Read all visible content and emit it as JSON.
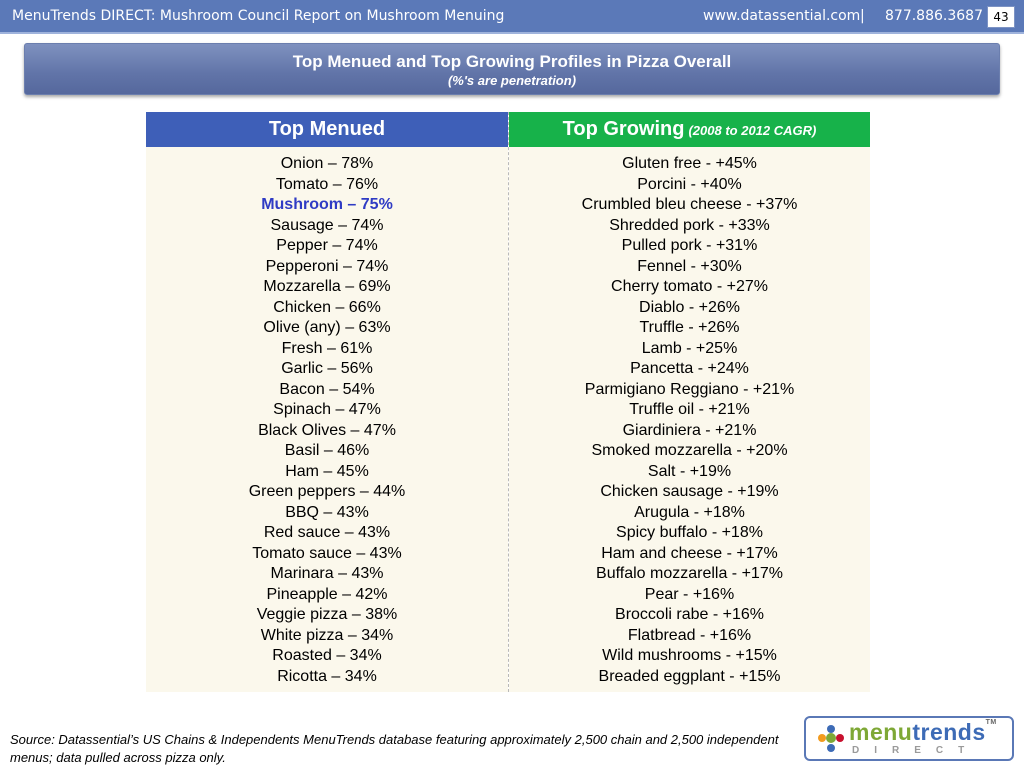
{
  "header": {
    "report_title": "MenuTrends DIRECT: Mushroom Council Report on Mushroom Menuing",
    "website": "www.datassential.com",
    "separator": "|",
    "phone": "877.886.3687",
    "page_number": "43"
  },
  "slide": {
    "title": "Top Menued and Top Growing Profiles in Pizza Overall",
    "subtitle": "(%'s are penetration)"
  },
  "table": {
    "left_header": "Top Menued",
    "right_header": "Top Growing",
    "right_header_note": "(2008 to 2012 CAGR)",
    "top_menued": [
      "Onion – 78%",
      "Tomato – 76%",
      "Mushroom – 75%",
      "Sausage – 74%",
      "Pepper – 74%",
      "Pepperoni – 74%",
      "Mozzarella – 69%",
      "Chicken – 66%",
      "Olive (any) – 63%",
      "Fresh – 61%",
      "Garlic – 56%",
      "Bacon – 54%",
      "Spinach – 47%",
      "Black Olives – 47%",
      "Basil – 46%",
      "Ham – 45%",
      "Green peppers – 44%",
      "BBQ – 43%",
      "Red sauce – 43%",
      "Tomato sauce – 43%",
      "Marinara – 43%",
      "Pineapple – 42%",
      "Veggie pizza – 38%",
      "White pizza – 34%",
      "Roasted – 34%",
      "Ricotta – 34%"
    ],
    "highlight_color": "#2f3bc4",
    "top_growing": [
      "Gluten free - +45%",
      "Porcini - +40%",
      "Crumbled bleu cheese - +37%",
      "Shredded pork - +33%",
      "Pulled pork - +31%",
      "Fennel - +30%",
      "Cherry tomato - +27%",
      "Diablo - +26%",
      "Truffle - +26%",
      "Lamb - +25%",
      "Pancetta - +24%",
      "Parmigiano Reggiano - +21%",
      "Truffle oil - +21%",
      "Giardiniera - +21%",
      "Smoked mozzarella - +20%",
      "Salt - +19%",
      "Chicken sausage - +19%",
      "Arugula - +18%",
      "Spicy buffalo - +18%",
      "Ham and cheese - +17%",
      "Buffalo mozzarella - +17%",
      "Pear - +16%",
      "Broccoli rabe - +16%",
      "Flatbread - +16%",
      "Wild mushrooms - +15%",
      "Breaded eggplant - +15%"
    ]
  },
  "footer": {
    "source": "Source: Datassential’s US Chains & Independents MenuTrends database featuring approximately 2,500 chain and 2,500 independent menus; data pulled across pizza only."
  },
  "logo": {
    "word_part1": "menu",
    "word_part2": "trends",
    "trademark": "TM",
    "tagline": "DIRECT"
  }
}
